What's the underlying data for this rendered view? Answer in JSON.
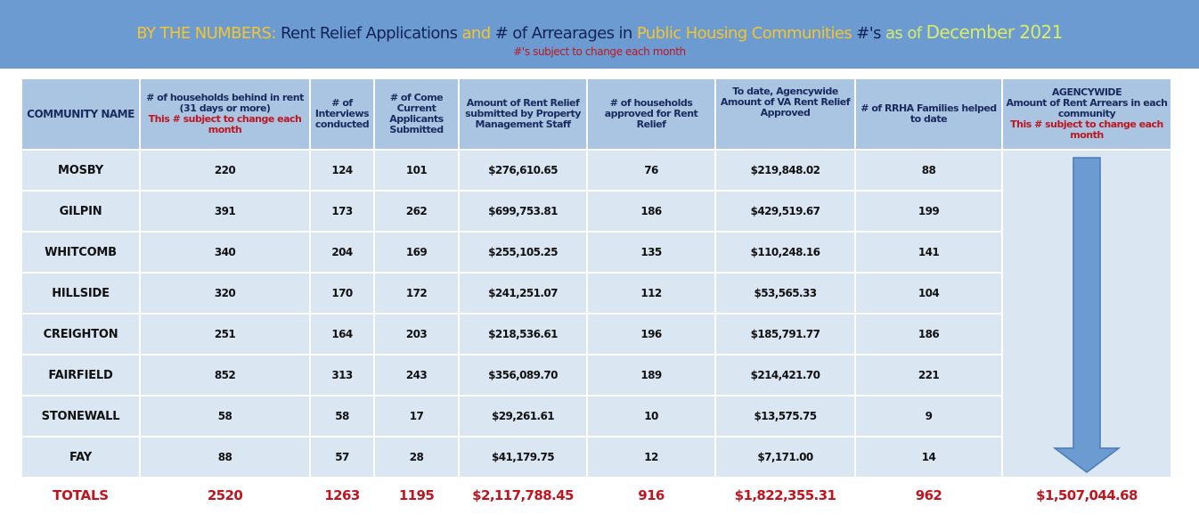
{
  "header": {
    "title_parts": {
      "p1": "BY THE NUMBERS:",
      "p2": "Rent Relief Applications",
      "p3": "and",
      "p4": "# of Arrearages in",
      "p5": "Public Housing Communities",
      "p6": "#'s",
      "p7": "as of",
      "p8": "December 2021"
    },
    "subtitle": "#'s subject to change each month"
  },
  "table": {
    "headers": {
      "community": "COMMUNITY NAME",
      "behind": "# of households behind in rent (31 days or more)",
      "behind_note": "This # subject to change each month",
      "interviews": "# of Interviews conducted",
      "current": "# of Come Current Applicants Submitted",
      "submitted": "Amount of Rent Relief submitted by Property Management Staff",
      "approved": "# of households approved for Rent Relief",
      "va": "To date, Agencywide Amount of VA Rent Relief Approved",
      "helped": "# of RRHA Families helped to date",
      "arrears_top": "AGENCYWIDE",
      "arrears": "Amount of Rent Arrears in each community",
      "arrears_note": "This # subject to change each month"
    },
    "rows": [
      {
        "name": "MOSBY",
        "behind": "220",
        "interviews": "124",
        "current": "101",
        "submitted": "$276,610.65",
        "approved": "76",
        "va": "$219,848.02",
        "helped": "88"
      },
      {
        "name": "GILPIN",
        "behind": "391",
        "interviews": "173",
        "current": "262",
        "submitted": "$699,753.81",
        "approved": "186",
        "va": "$429,519.67",
        "helped": "199"
      },
      {
        "name": "WHITCOMB",
        "behind": "340",
        "interviews": "204",
        "current": "169",
        "submitted": "$255,105.25",
        "approved": "135",
        "va": "$110,248.16",
        "helped": "141"
      },
      {
        "name": "HILLSIDE",
        "behind": "320",
        "interviews": "170",
        "current": "172",
        "submitted": "$241,251.07",
        "approved": "112",
        "va": "$53,565.33",
        "helped": "104"
      },
      {
        "name": "CREIGHTON",
        "behind": "251",
        "interviews": "164",
        "current": "203",
        "submitted": "$218,536.61",
        "approved": "196",
        "va": "$185,791.77",
        "helped": "186"
      },
      {
        "name": "FAIRFIELD",
        "behind": "852",
        "interviews": "313",
        "current": "243",
        "submitted": "$356,089.70",
        "approved": "189",
        "va": "$214,421.70",
        "helped": "221"
      },
      {
        "name": "STONEWALL",
        "behind": "58",
        "interviews": "58",
        "current": "17",
        "submitted": "$29,261.61",
        "approved": "10",
        "va": "$13,575.75",
        "helped": "9"
      },
      {
        "name": "FAY",
        "behind": "88",
        "interviews": "57",
        "current": "28",
        "submitted": "$41,179.75",
        "approved": "12",
        "va": "$7,171.00",
        "helped": "14"
      }
    ],
    "totals": {
      "name": "TOTALS",
      "behind": "2520",
      "interviews": "1263",
      "current": "1195",
      "submitted": "$2,117,788.45",
      "approved": "916",
      "va": "$1,822,355.31",
      "helped": "962",
      "arrears": "$1,507,044.68"
    }
  },
  "colors": {
    "banner": "#6b9bd1",
    "header_cell": "#aac5e2",
    "data_cell": "#dbe6f3",
    "accent_red": "#c0151f",
    "arrow": "#6b9bd1"
  },
  "icons": {
    "arrow": "down-arrow-icon"
  }
}
